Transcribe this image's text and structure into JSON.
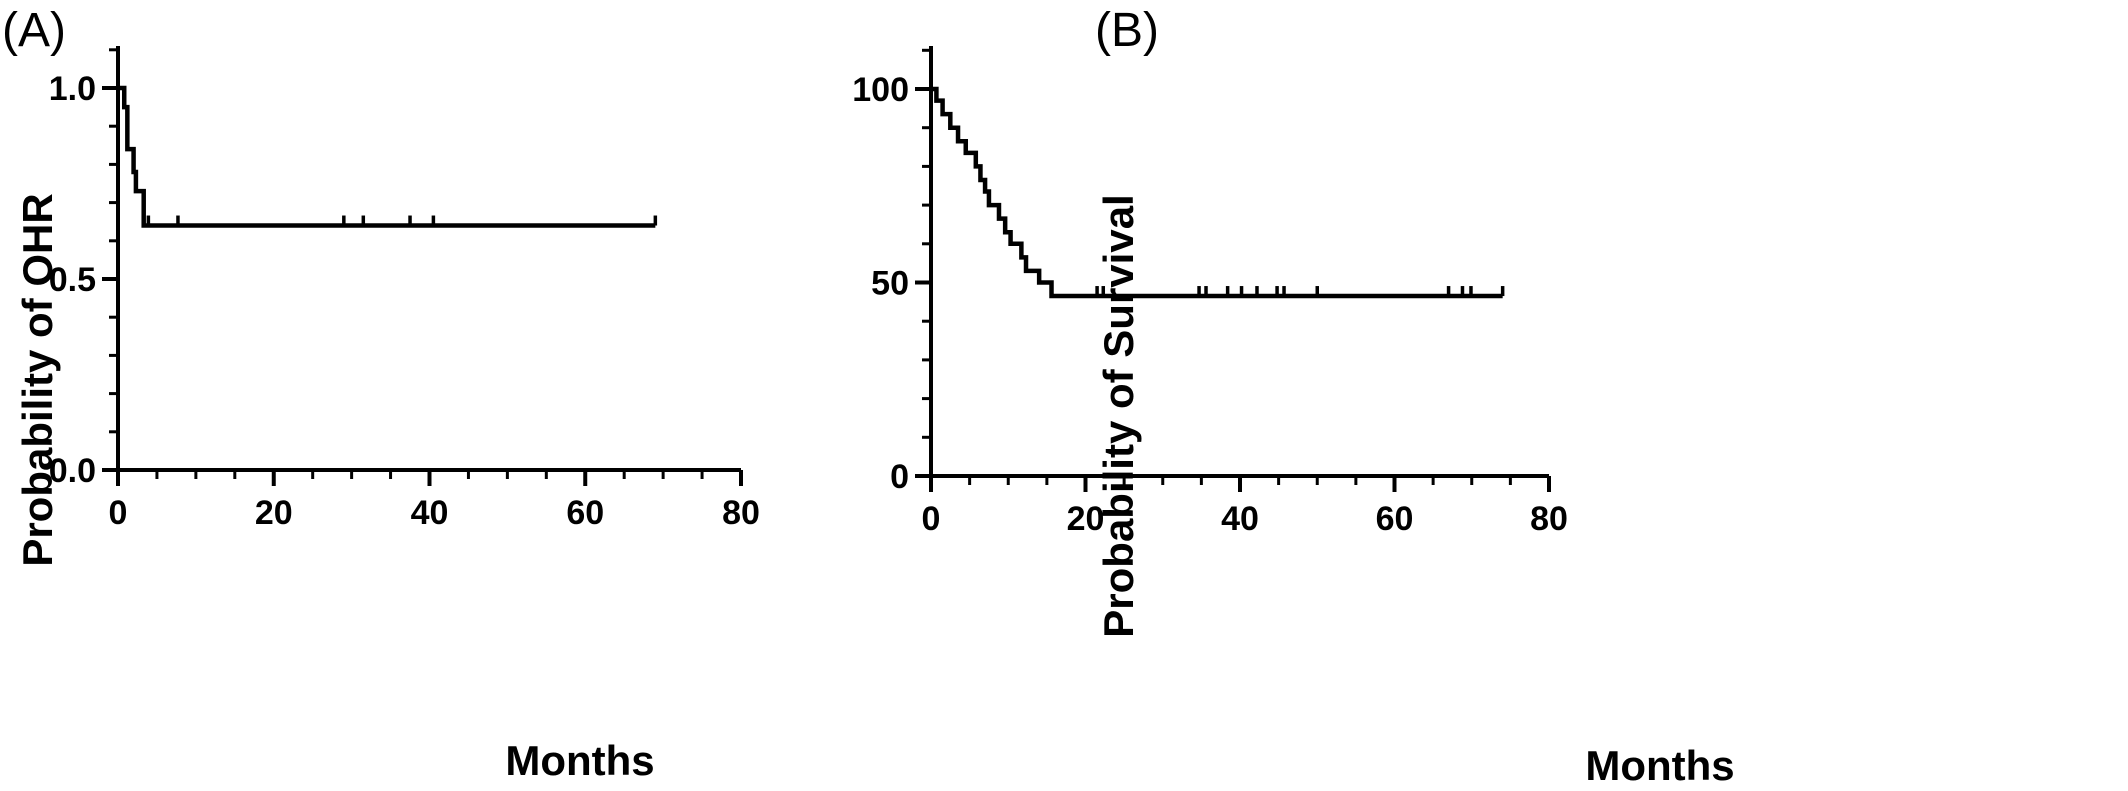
{
  "chart_data": [
    {
      "type": "line",
      "panel_label": "(A)",
      "xlabel": "Months",
      "ylabel": "Probability of OHR",
      "xlim": [
        0,
        80
      ],
      "ylim": [
        0,
        1.05
      ],
      "x_ticks": [
        0,
        20,
        40,
        60,
        80
      ],
      "y_ticks": [
        0.0,
        0.5,
        1.0
      ],
      "x_tick_labels": [
        "0",
        "20",
        "40",
        "60",
        "80"
      ],
      "y_tick_labels": [
        "0.0",
        "0.5",
        "1.0"
      ],
      "grid": false,
      "step": [
        {
          "x": 0,
          "y": 1.0
        },
        {
          "x": 0.8,
          "y": 0.95
        },
        {
          "x": 1.2,
          "y": 0.84
        },
        {
          "x": 2.0,
          "y": 0.78
        },
        {
          "x": 2.3,
          "y": 0.73
        },
        {
          "x": 3.3,
          "y": 0.64
        }
      ],
      "end_x": 69,
      "censored": [
        {
          "x": 3.9,
          "y": 0.64
        },
        {
          "x": 7.7,
          "y": 0.64
        },
        {
          "x": 29,
          "y": 0.64
        },
        {
          "x": 31.5,
          "y": 0.64
        },
        {
          "x": 37.5,
          "y": 0.64
        },
        {
          "x": 40.5,
          "y": 0.64
        },
        {
          "x": 69,
          "y": 0.64
        }
      ]
    },
    {
      "type": "line",
      "panel_label": "(B)",
      "xlabel": "Months",
      "ylabel": "Probability of Survival",
      "xlim": [
        0,
        80
      ],
      "ylim": [
        0,
        105
      ],
      "x_ticks": [
        0,
        20,
        40,
        60,
        80
      ],
      "y_ticks": [
        0,
        50,
        100
      ],
      "x_tick_labels": [
        "0",
        "20",
        "40",
        "60",
        "80"
      ],
      "y_tick_labels": [
        "0",
        "50",
        "100"
      ],
      "grid": false,
      "step": [
        {
          "x": 0,
          "y": 100
        },
        {
          "x": 0.7,
          "y": 97
        },
        {
          "x": 1.5,
          "y": 93.5
        },
        {
          "x": 2.5,
          "y": 90
        },
        {
          "x": 3.5,
          "y": 86.5
        },
        {
          "x": 4.5,
          "y": 83.5
        },
        {
          "x": 5.8,
          "y": 80
        },
        {
          "x": 6.4,
          "y": 76.5
        },
        {
          "x": 7.0,
          "y": 73.5
        },
        {
          "x": 7.5,
          "y": 70
        },
        {
          "x": 8.8,
          "y": 66.5
        },
        {
          "x": 9.6,
          "y": 63
        },
        {
          "x": 10.3,
          "y": 60
        },
        {
          "x": 11.7,
          "y": 56.5
        },
        {
          "x": 12.3,
          "y": 53
        },
        {
          "x": 14.0,
          "y": 50
        },
        {
          "x": 15.6,
          "y": 46.5
        }
      ],
      "end_x": 74,
      "censored": [
        {
          "x": 21.5,
          "y": 46.5
        },
        {
          "x": 22.3,
          "y": 46.5
        },
        {
          "x": 34.7,
          "y": 46.5
        },
        {
          "x": 35.6,
          "y": 46.5
        },
        {
          "x": 38.4,
          "y": 46.5
        },
        {
          "x": 40.2,
          "y": 46.5
        },
        {
          "x": 42.2,
          "y": 46.5
        },
        {
          "x": 44.8,
          "y": 46.5
        },
        {
          "x": 45.7,
          "y": 46.5
        },
        {
          "x": 50.0,
          "y": 46.5
        },
        {
          "x": 67.0,
          "y": 46.5
        },
        {
          "x": 68.8,
          "y": 46.5
        },
        {
          "x": 69.9,
          "y": 46.5
        },
        {
          "x": 74.0,
          "y": 46.5
        }
      ]
    }
  ]
}
